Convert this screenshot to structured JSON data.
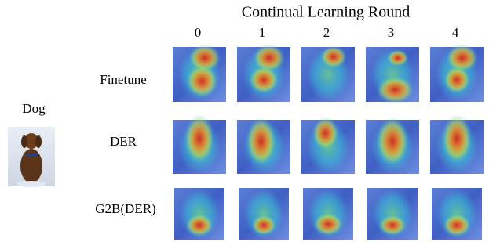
{
  "title": "Continual Learning Round",
  "rounds": [
    "0",
    "1",
    "2",
    "3",
    "4"
  ],
  "sample": {
    "label": "Dog"
  },
  "rows": [
    {
      "label": "Finetune"
    },
    {
      "label": "DER"
    },
    {
      "label": "G2B(DER)"
    }
  ]
}
